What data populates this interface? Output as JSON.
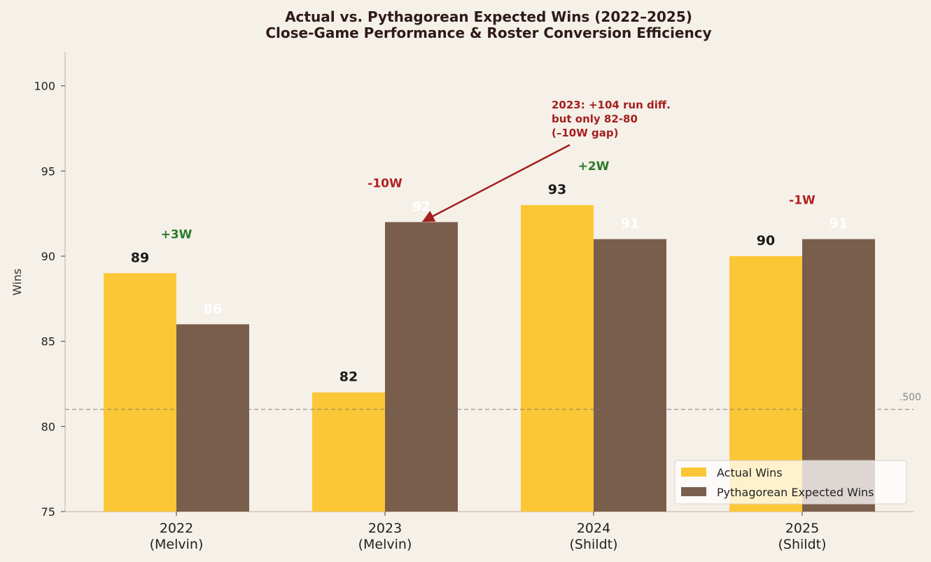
{
  "chart_data": {
    "type": "bar",
    "title_line1": "Actual vs. Pythagorean Expected Wins (2022–2025)",
    "title_line2": "Close-Game Performance & Roster Conversion Efficiency",
    "ylabel": "Wins",
    "ylim": [
      75,
      102
    ],
    "yticks": [
      75,
      80,
      85,
      90,
      95,
      100
    ],
    "categories": [
      {
        "line1": "2022",
        "line2": "(Melvin)"
      },
      {
        "line1": "2023",
        "line2": "(Melvin)"
      },
      {
        "line1": "2024",
        "line2": "(Shildt)"
      },
      {
        "line1": "2025",
        "line2": "(Shildt)"
      }
    ],
    "series": [
      {
        "name": "Actual Wins",
        "color": "#fcc736",
        "label_color": "#1a1a1a",
        "values": [
          89,
          82,
          93,
          90
        ]
      },
      {
        "name": "Pythagorean Expected Wins",
        "color": "#7a5e4c",
        "label_color": "#ffffff",
        "values": [
          86,
          92,
          91,
          91
        ]
      }
    ],
    "diffs": [
      {
        "text": "+3W",
        "color": "#2a7a2a"
      },
      {
        "text": "-10W",
        "color": "#b22222"
      },
      {
        "text": "+2W",
        "color": "#2a7a2a"
      },
      {
        "text": "-1W",
        "color": "#b22222"
      }
    ],
    "reference_line": {
      "value": 81,
      "label": ".500"
    },
    "annotation": {
      "lines": [
        "2023: +104 run diff.",
        "but only 82-80",
        "(–10W gap)"
      ],
      "color": "#a31f1f",
      "points_to": {
        "category_index": 1,
        "series_index": 1
      }
    },
    "legend_position": "lower-right",
    "grid": false
  }
}
